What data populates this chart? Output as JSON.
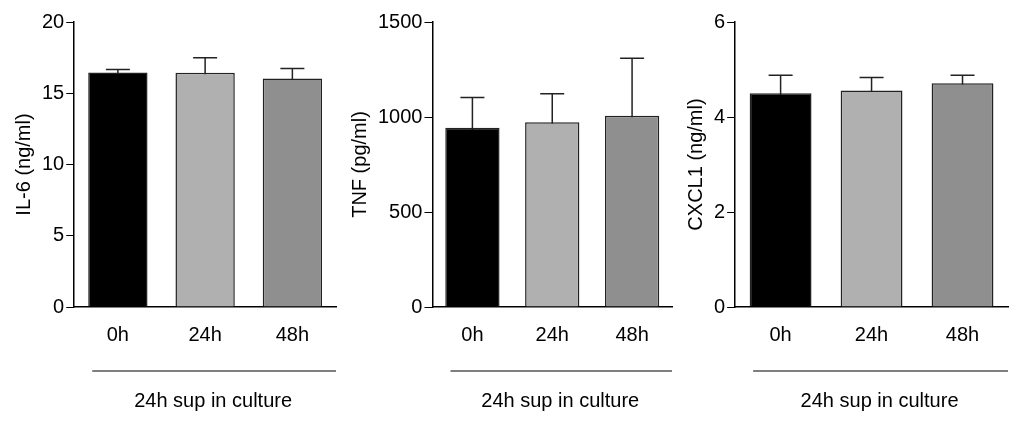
{
  "chart_data": [
    {
      "type": "bar",
      "categories": [
        "0h",
        "24h",
        "48h"
      ],
      "values": [
        16.46,
        16.44,
        16.04
      ],
      "errors": [
        0.2,
        1.05,
        0.7
      ],
      "colors": [
        "#000000",
        "#b0b0b0",
        "#8f8f8f"
      ],
      "ylabel": "IL-6 (ng/ml)",
      "xlabel": "24h sup in culture",
      "ylim": [
        0,
        20
      ],
      "yticks": [
        0,
        5,
        10,
        15,
        20
      ],
      "grid": false,
      "legend": false
    },
    {
      "type": "bar",
      "categories": [
        "0h",
        "24h",
        "48h"
      ],
      "values": [
        943,
        972,
        1007
      ],
      "errors": [
        160,
        150,
        302
      ],
      "colors": [
        "#000000",
        "#b0b0b0",
        "#8f8f8f"
      ],
      "ylabel": "TNF (pg/ml)",
      "xlabel": "24h sup in culture",
      "ylim": [
        0,
        1500
      ],
      "yticks": [
        0,
        500,
        1000,
        1500
      ],
      "grid": false,
      "legend": false
    },
    {
      "type": "bar",
      "categories": [
        "0h",
        "24h",
        "48h"
      ],
      "values": [
        4.5,
        4.56,
        4.71
      ],
      "errors": [
        0.38,
        0.27,
        0.17
      ],
      "colors": [
        "#000000",
        "#b0b0b0",
        "#8f8f8f"
      ],
      "ylabel": "CXCL1 (ng/ml)",
      "xlabel": "24h sup in culture",
      "ylim": [
        0,
        6
      ],
      "yticks": [
        0,
        2,
        4,
        6
      ],
      "grid": false,
      "legend": false
    }
  ]
}
